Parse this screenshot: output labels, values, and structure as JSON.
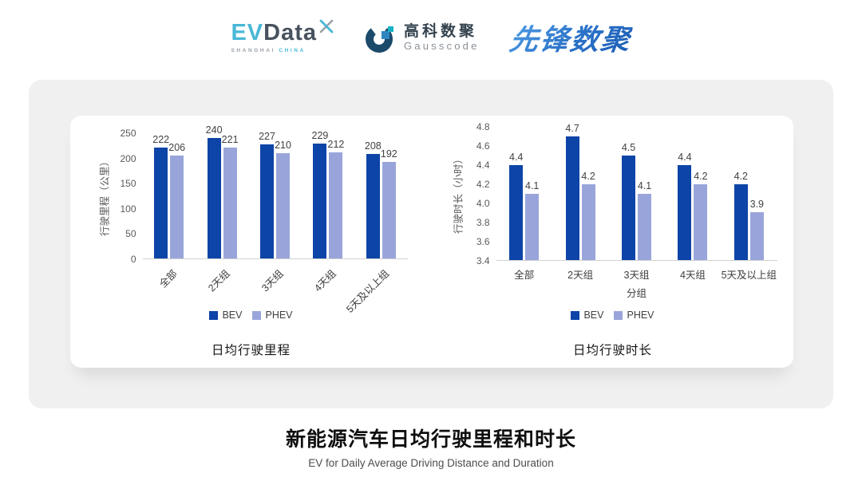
{
  "header": {
    "evdata": {
      "ev": "EV",
      "data": "Data",
      "sub_left": "SHANGHAI",
      "sub_right": "CHINA"
    },
    "gausscode": {
      "cn": "高科数聚",
      "en": "Gausscode"
    },
    "pioneer": {
      "text": "先锋数聚"
    }
  },
  "colors": {
    "bev": "#0d44a7",
    "phev": "#99a5da",
    "axis_text": "#595959",
    "value_text": "#414141"
  },
  "chart_data": [
    {
      "id": "distance",
      "type": "bar",
      "title": "日均行驶里程",
      "ylabel": "行驶里程（公里）",
      "xlabel": "",
      "categories": [
        "全部",
        "2天组",
        "3天组",
        "4天组",
        "5天及以上组"
      ],
      "series": [
        {
          "name": "BEV",
          "color": "#0d44a7",
          "values": [
            222,
            240,
            227,
            229,
            208
          ]
        },
        {
          "name": "PHEV",
          "color": "#99a5da",
          "values": [
            206,
            221,
            210,
            212,
            192
          ]
        }
      ],
      "ylim": [
        0,
        250
      ],
      "ytick_labels": [
        "0",
        "50",
        "100",
        "150",
        "200",
        "250"
      ],
      "value_decimals": 0,
      "rotated_xlabels": true,
      "grid": false,
      "legend_position": "bottom"
    },
    {
      "id": "duration",
      "type": "bar",
      "title": "日均行驶时长",
      "ylabel": "行驶时长（小时）",
      "xlabel": "分组",
      "categories": [
        "全部",
        "2天组",
        "3天组",
        "4天组",
        "5天及以上组"
      ],
      "series": [
        {
          "name": "BEV",
          "color": "#0d44a7",
          "values": [
            4.4,
            4.7,
            4.5,
            4.4,
            4.2
          ]
        },
        {
          "name": "PHEV",
          "color": "#99a5da",
          "values": [
            4.1,
            4.2,
            4.1,
            4.2,
            3.9
          ]
        }
      ],
      "ylim": [
        3.4,
        4.8
      ],
      "ytick_labels": [
        "3.4",
        "3.6",
        "3.8",
        "4.0",
        "4.2",
        "4.4",
        "4.6",
        "4.8"
      ],
      "value_decimals": 1,
      "rotated_xlabels": false,
      "grid": false,
      "legend_position": "bottom"
    }
  ],
  "footer": {
    "title": "新能源汽车日均行驶里程和时长",
    "subtitle": "EV for Daily Average Driving Distance and Duration"
  }
}
